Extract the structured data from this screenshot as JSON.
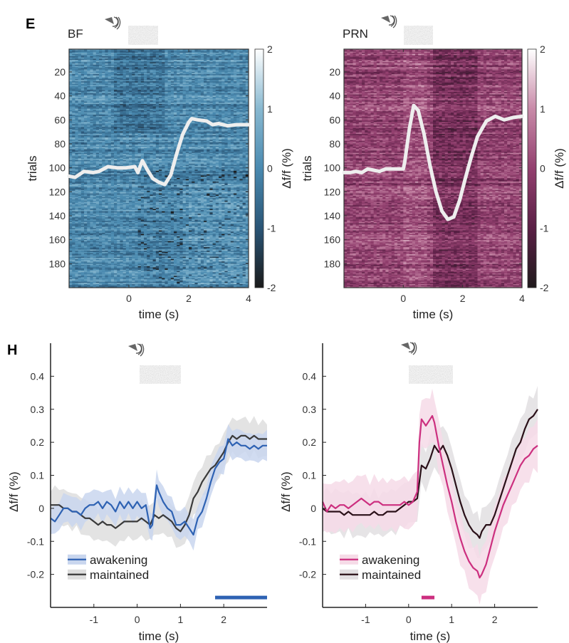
{
  "chart_data": [
    {
      "panel": "E",
      "id": "E-BF",
      "type": "heatmap",
      "title": "BF",
      "xlabel": "time (s)",
      "ylabel": "trials",
      "xlim": [
        -2,
        4
      ],
      "ylim": [
        1,
        200
      ],
      "xticks": [
        0,
        2,
        4
      ],
      "yticks": [
        20,
        40,
        60,
        80,
        100,
        120,
        140,
        160,
        180
      ],
      "colorbar": {
        "label": "Δf/f (%)",
        "range": [
          -2,
          2
        ],
        "ticks": [
          2,
          1,
          0,
          -1,
          -2
        ],
        "colors": [
          "#1a1a1a",
          "#2a5576",
          "#4a8ab0",
          "#88b8d0",
          "#ffffff"
        ]
      },
      "base_color": "#3f7ea4",
      "overlay_trace": {
        "color": "#eeeeee",
        "note": "mean trace overlaid, expressed in trial-row units",
        "x": [
          -2,
          -1.8,
          -1.5,
          -1.2,
          -1.0,
          -0.7,
          -0.4,
          -0.1,
          0.2,
          0.3,
          0.45,
          0.6,
          0.8,
          1.0,
          1.2,
          1.4,
          1.6,
          1.8,
          2.0,
          2.1,
          2.3,
          2.6,
          2.8,
          3.0,
          3.3,
          3.6,
          4.0
        ],
        "y": [
          107,
          108,
          103,
          104,
          103,
          99,
          100,
          100,
          99,
          104,
          94,
          101,
          109,
          112,
          114,
          106,
          88,
          72,
          62,
          59,
          60,
          61,
          64,
          63,
          65,
          64,
          64
        ]
      }
    },
    {
      "panel": "E",
      "id": "E-PRN",
      "type": "heatmap",
      "title": "PRN",
      "xlabel": "time (s)",
      "ylabel": "trials",
      "xlim": [
        -2,
        4
      ],
      "ylim": [
        1,
        200
      ],
      "xticks": [
        0,
        2,
        4
      ],
      "yticks": [
        20,
        40,
        60,
        80,
        100,
        120,
        140,
        160,
        180
      ],
      "colorbar": {
        "label": "Δf/f (%)",
        "range": [
          -2,
          2
        ],
        "ticks": [
          2,
          1,
          0,
          -1,
          -2
        ],
        "colors": [
          "#1f1a1c",
          "#5a1f45",
          "#93406f",
          "#c88aa8",
          "#ffffff"
        ]
      },
      "base_color": "#8e3f6c",
      "overlay_trace": {
        "color": "#eeeeee",
        "x": [
          -2,
          -1.8,
          -1.6,
          -1.4,
          -1.2,
          -1.0,
          -0.8,
          -0.6,
          -0.3,
          0,
          0.05,
          0.2,
          0.35,
          0.5,
          0.7,
          0.9,
          1.1,
          1.3,
          1.5,
          1.7,
          1.9,
          2.1,
          2.3,
          2.5,
          2.8,
          3.1,
          3.4,
          3.7,
          4.0
        ],
        "y": [
          104,
          104,
          103,
          104,
          101,
          102,
          103,
          101,
          101,
          101,
          95,
          68,
          48,
          52,
          72,
          98,
          120,
          136,
          143,
          141,
          127,
          108,
          90,
          74,
          61,
          57,
          60,
          58,
          57
        ]
      }
    },
    {
      "panel": "H",
      "id": "H-BF",
      "type": "line",
      "title": "",
      "xlabel": "time (s)",
      "ylabel": "Δf/f (%)",
      "xlim": [
        -2,
        3
      ],
      "ylim": [
        -0.3,
        0.5
      ],
      "xticks": [
        -1,
        0,
        1,
        2
      ],
      "yticks": [
        -0.2,
        -0.1,
        0,
        0.1,
        0.2,
        0.3,
        0.4
      ],
      "legend": {
        "position": "bottom-left",
        "entries": [
          "awakening",
          "maintained"
        ]
      },
      "significance_bar": {
        "x": [
          1.8,
          3.0
        ],
        "y": -0.27,
        "color": "#2e62b3"
      },
      "series": [
        {
          "name": "awakening",
          "color": "#2e62b3",
          "band_color": "#c9d6ee",
          "x": [
            -2,
            -1.9,
            -1.8,
            -1.7,
            -1.6,
            -1.5,
            -1.4,
            -1.3,
            -1.2,
            -1.1,
            -1.0,
            -0.9,
            -0.8,
            -0.7,
            -0.6,
            -0.5,
            -0.4,
            -0.3,
            -0.2,
            -0.1,
            0,
            0.1,
            0.2,
            0.3,
            0.35,
            0.45,
            0.5,
            0.6,
            0.7,
            0.8,
            0.9,
            1.0,
            1.1,
            1.2,
            1.3,
            1.4,
            1.5,
            1.6,
            1.7,
            1.8,
            1.9,
            2.0,
            2.1,
            2.2,
            2.3,
            2.4,
            2.5,
            2.6,
            2.7,
            2.8,
            2.9,
            3.0
          ],
          "y": [
            -0.03,
            -0.04,
            -0.02,
            0.0,
            0.0,
            -0.01,
            -0.01,
            -0.02,
            0.0,
            0.01,
            0.01,
            0.02,
            0.0,
            0.02,
            0.01,
            -0.01,
            0.02,
            0.0,
            0.02,
            0.0,
            0.02,
            0.0,
            0.01,
            -0.06,
            -0.05,
            0.07,
            0.05,
            0.02,
            0.0,
            -0.01,
            -0.05,
            -0.05,
            -0.04,
            -0.06,
            -0.08,
            -0.03,
            -0.01,
            0.03,
            0.08,
            0.12,
            0.14,
            0.15,
            0.21,
            0.19,
            0.2,
            0.19,
            0.19,
            0.18,
            0.19,
            0.18,
            0.19,
            0.19
          ],
          "band_halfwidth": 0.04
        },
        {
          "name": "maintained",
          "color": "#3a3a3a",
          "band_color": "#dedede",
          "x": [
            -2,
            -1.9,
            -1.8,
            -1.7,
            -1.6,
            -1.5,
            -1.4,
            -1.3,
            -1.2,
            -1.1,
            -1.0,
            -0.9,
            -0.8,
            -0.7,
            -0.6,
            -0.5,
            -0.4,
            -0.3,
            -0.2,
            -0.1,
            0,
            0.1,
            0.2,
            0.3,
            0.4,
            0.5,
            0.6,
            0.7,
            0.8,
            0.9,
            1.0,
            1.1,
            1.2,
            1.3,
            1.4,
            1.5,
            1.6,
            1.7,
            1.8,
            1.9,
            2.0,
            2.1,
            2.2,
            2.3,
            2.4,
            2.5,
            2.6,
            2.7,
            2.8,
            2.9,
            3.0
          ],
          "y": [
            0.01,
            0.01,
            0.01,
            0.0,
            0.0,
            -0.01,
            -0.01,
            -0.02,
            -0.03,
            -0.03,
            -0.04,
            -0.05,
            -0.04,
            -0.05,
            -0.05,
            -0.06,
            -0.05,
            -0.04,
            -0.04,
            -0.04,
            -0.04,
            -0.03,
            -0.04,
            -0.05,
            -0.02,
            -0.03,
            -0.02,
            -0.03,
            -0.04,
            -0.06,
            -0.07,
            -0.05,
            -0.02,
            0.03,
            0.05,
            0.08,
            0.1,
            0.12,
            0.13,
            0.15,
            0.17,
            0.2,
            0.22,
            0.21,
            0.22,
            0.22,
            0.21,
            0.22,
            0.21,
            0.21,
            0.21
          ],
          "band_halfwidth": 0.05
        }
      ]
    },
    {
      "panel": "H",
      "id": "H-PRN",
      "type": "line",
      "title": "",
      "xlabel": "time (s)",
      "ylabel": "Δf/f (%)",
      "xlim": [
        -2,
        3
      ],
      "ylim": [
        -0.3,
        0.5
      ],
      "xticks": [
        -1,
        0,
        1,
        2
      ],
      "yticks": [
        -0.2,
        -0.1,
        0,
        0.1,
        0.2,
        0.3,
        0.4
      ],
      "legend": {
        "position": "bottom-left",
        "entries": [
          "awakening",
          "maintained"
        ]
      },
      "significance_bar": {
        "x": [
          0.3,
          0.6
        ],
        "y": -0.27,
        "color": "#cc2f7f"
      },
      "series": [
        {
          "name": "awakening",
          "color": "#cc2f7f",
          "band_color": "#f6dbe7",
          "x": [
            -2,
            -1.9,
            -1.8,
            -1.7,
            -1.6,
            -1.5,
            -1.4,
            -1.3,
            -1.2,
            -1.1,
            -1.0,
            -0.9,
            -0.8,
            -0.7,
            -0.6,
            -0.5,
            -0.4,
            -0.3,
            -0.2,
            -0.1,
            0,
            0.1,
            0.2,
            0.25,
            0.3,
            0.4,
            0.5,
            0.55,
            0.6,
            0.7,
            0.8,
            0.9,
            1.0,
            1.1,
            1.2,
            1.3,
            1.4,
            1.5,
            1.6,
            1.65,
            1.7,
            1.8,
            1.9,
            2.0,
            2.1,
            2.2,
            2.3,
            2.4,
            2.5,
            2.6,
            2.7,
            2.8,
            2.9,
            3.0
          ],
          "y": [
            0.02,
            -0.01,
            0.01,
            0.0,
            0.01,
            0.01,
            0.0,
            0.01,
            0.02,
            0.03,
            0.02,
            0.01,
            0.02,
            0.02,
            0.01,
            0.01,
            0.01,
            0.01,
            0.01,
            0.02,
            0.01,
            0.02,
            0.05,
            0.2,
            0.27,
            0.25,
            0.27,
            0.28,
            0.26,
            0.19,
            0.13,
            0.07,
            0.02,
            -0.04,
            -0.09,
            -0.13,
            -0.16,
            -0.18,
            -0.19,
            -0.21,
            -0.2,
            -0.17,
            -0.12,
            -0.07,
            -0.03,
            0.01,
            0.04,
            0.07,
            0.1,
            0.13,
            0.15,
            0.16,
            0.18,
            0.19
          ],
          "band_halfwidth": 0.07
        },
        {
          "name": "maintained",
          "color": "#2a1018",
          "band_color": "#e2dfe2",
          "x": [
            -2,
            -1.9,
            -1.8,
            -1.7,
            -1.6,
            -1.5,
            -1.4,
            -1.3,
            -1.2,
            -1.1,
            -1.0,
            -0.9,
            -0.8,
            -0.7,
            -0.6,
            -0.5,
            -0.4,
            -0.3,
            -0.2,
            -0.1,
            0,
            0.1,
            0.2,
            0.3,
            0.4,
            0.5,
            0.6,
            0.7,
            0.8,
            0.9,
            1.0,
            1.1,
            1.2,
            1.3,
            1.4,
            1.5,
            1.6,
            1.65,
            1.7,
            1.8,
            1.9,
            2.0,
            2.1,
            2.2,
            2.3,
            2.4,
            2.5,
            2.6,
            2.7,
            2.8,
            2.9,
            3.0
          ],
          "y": [
            0.0,
            -0.01,
            -0.01,
            -0.01,
            -0.01,
            -0.02,
            -0.01,
            -0.02,
            -0.02,
            -0.02,
            -0.02,
            -0.02,
            -0.01,
            -0.02,
            -0.02,
            -0.01,
            -0.01,
            -0.01,
            0.0,
            0.01,
            0.02,
            0.02,
            0.03,
            0.13,
            0.12,
            0.15,
            0.19,
            0.17,
            0.19,
            0.16,
            0.12,
            0.07,
            0.02,
            -0.02,
            -0.05,
            -0.07,
            -0.08,
            -0.09,
            -0.07,
            -0.05,
            -0.05,
            -0.02,
            0.02,
            0.06,
            0.1,
            0.14,
            0.18,
            0.2,
            0.24,
            0.27,
            0.28,
            0.3
          ],
          "band_halfwidth": 0.06
        }
      ]
    }
  ],
  "labels": {
    "panel_E": "E",
    "panel_H": "H",
    "stimulus_icon": "speaker-with-noise-stimulus"
  }
}
